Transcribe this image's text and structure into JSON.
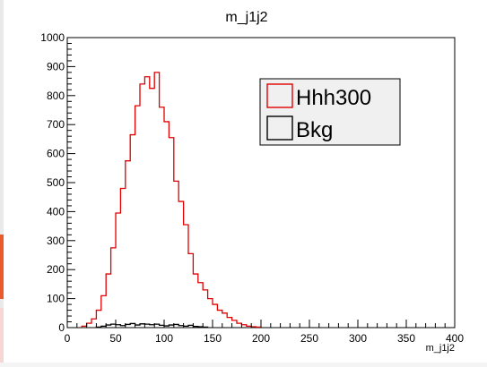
{
  "page": {
    "accent_color": "#ea5a2b"
  },
  "chart_data": {
    "type": "histogram",
    "title": "m_j1j2",
    "xlabel": "m_j1j2",
    "ylabel": "",
    "xlim": [
      0,
      400
    ],
    "ylim": [
      0,
      1000
    ],
    "bin_width": 5,
    "xticks": [
      0,
      50,
      100,
      150,
      200,
      250,
      300,
      350,
      400
    ],
    "yticks": [
      0,
      100,
      200,
      300,
      400,
      500,
      600,
      700,
      800,
      900,
      1000
    ],
    "legend": {
      "position": "top-right",
      "entries": [
        {
          "label": "Hhh300",
          "color": "#e00000"
        },
        {
          "label": "Bkg",
          "color": "#000000"
        }
      ]
    },
    "series": [
      {
        "name": "Hhh300",
        "color": "#e00000",
        "x": [
          15,
          20,
          25,
          30,
          35,
          40,
          45,
          50,
          55,
          60,
          65,
          70,
          75,
          80,
          85,
          90,
          95,
          100,
          105,
          110,
          115,
          120,
          125,
          130,
          135,
          140,
          145,
          150,
          155,
          160,
          165,
          170,
          175,
          180,
          185,
          190,
          195
        ],
        "values": [
          5,
          15,
          30,
          60,
          110,
          185,
          275,
          395,
          480,
          575,
          665,
          765,
          840,
          865,
          825,
          880,
          760,
          710,
          655,
          505,
          435,
          355,
          255,
          185,
          155,
          130,
          100,
          80,
          60,
          50,
          35,
          25,
          15,
          10,
          5,
          3,
          2
        ]
      },
      {
        "name": "Bkg",
        "color": "#000000",
        "x": [
          30,
          35,
          40,
          45,
          50,
          55,
          60,
          65,
          70,
          75,
          80,
          85,
          90,
          95,
          100,
          105,
          110,
          115,
          120,
          125,
          130,
          135,
          140
        ],
        "values": [
          2,
          5,
          9,
          12,
          10,
          7,
          11,
          14,
          9,
          13,
          12,
          10,
          12,
          8,
          6,
          9,
          11,
          7,
          5,
          8,
          4,
          3,
          2
        ]
      }
    ]
  }
}
